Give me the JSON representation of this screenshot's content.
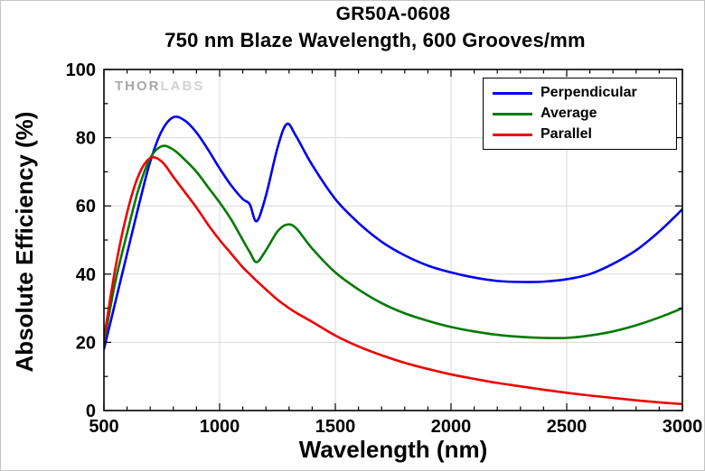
{
  "title": "GR50A-0608",
  "subtitle": "750 nm Blaze Wavelength, 600 Grooves/mm",
  "watermark": {
    "bold": "THOR",
    "light": "LABS"
  },
  "axes": {
    "x_label": "Wavelength (nm)",
    "y_label": "Absolute Efficiency (%)"
  },
  "chart_data": {
    "type": "line",
    "title": "GR50A-0608",
    "subtitle": "750 nm Blaze Wavelength, 600 Grooves/mm",
    "xlabel": "Wavelength (nm)",
    "ylabel": "Absolute Efficiency (%)",
    "xlim": [
      500,
      3000
    ],
    "ylim": [
      0,
      100
    ],
    "x_ticks": [
      500,
      1000,
      1500,
      2000,
      2500,
      3000
    ],
    "y_ticks": [
      0,
      20,
      40,
      60,
      80,
      100
    ],
    "x_minor_step": 100,
    "y_minor_step": 10,
    "grid": true,
    "legend_position": "top-right",
    "grid_color": "#d9d9d9",
    "x": [
      500,
      550,
      600,
      650,
      700,
      750,
      800,
      850,
      900,
      950,
      1000,
      1050,
      1100,
      1130,
      1160,
      1200,
      1250,
      1290,
      1330,
      1400,
      1500,
      1600,
      1700,
      1800,
      1900,
      2000,
      2100,
      2200,
      2300,
      2400,
      2500,
      2600,
      2700,
      2800,
      2900,
      3000
    ],
    "series": [
      {
        "name": "Perpendicular",
        "color": "#0000ee",
        "values": [
          18,
          32,
          46,
          60,
          73,
          82,
          86,
          85,
          81.5,
          76.5,
          71,
          66,
          62,
          60.5,
          55.5,
          63,
          77,
          84,
          80.5,
          72,
          62,
          55,
          49.5,
          45.5,
          42.5,
          40.5,
          39,
          38,
          37.7,
          37.8,
          38.5,
          40,
          43,
          47,
          52.5,
          59
        ]
      },
      {
        "name": "Average",
        "color": "#007a00",
        "values": [
          20,
          38,
          52,
          65,
          74,
          77.5,
          76.5,
          73.5,
          70,
          65.5,
          61,
          56,
          50,
          46.5,
          43.5,
          47,
          52.5,
          54.5,
          53.5,
          47.5,
          40.5,
          35.5,
          31.5,
          28.5,
          26.3,
          24.5,
          23.2,
          22.2,
          21.6,
          21.3,
          21.3,
          22,
          23.2,
          25,
          27.3,
          30
        ]
      },
      {
        "name": "Parallel",
        "color": "#ee0000",
        "values": [
          21,
          42,
          58,
          69,
          74,
          73,
          68.5,
          64,
          59.5,
          54.5,
          50,
          46,
          42,
          40,
          38,
          35.5,
          32.5,
          30.5,
          28.7,
          26,
          22,
          18.8,
          16.2,
          14,
          12.2,
          10.6,
          9.3,
          8.1,
          7.1,
          6.1,
          5.2,
          4.4,
          3.7,
          3,
          2.4,
          1.9
        ]
      }
    ]
  }
}
